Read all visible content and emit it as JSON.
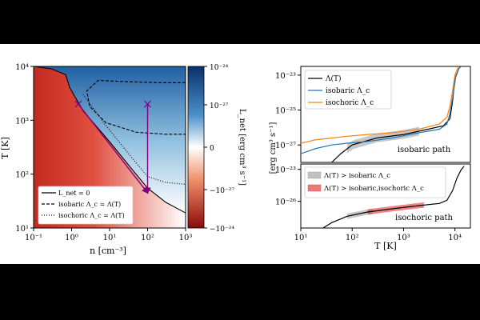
{
  "chart_data": [
    {
      "type": "heatmap",
      "xlabel": "n [cm⁻³]",
      "ylabel": "T [K]",
      "x_scale": "log",
      "y_scale": "log",
      "xlim": [
        0.1,
        1000
      ],
      "ylim": [
        10,
        10000
      ],
      "x_ticks": [
        "10⁻¹",
        "10⁰",
        "10¹",
        "10²",
        "10³"
      ],
      "y_ticks": [
        "10¹",
        "10²",
        "10³",
        "10⁴"
      ],
      "colorbar": {
        "label": "L_net [erg cm³ s⁻¹]",
        "ticks": [
          "10⁻²⁴",
          "10⁻²⁷",
          "0",
          "−10⁻²⁷",
          "−10⁻²⁴"
        ],
        "colors": {
          "positive": "#2166ac",
          "zero": "#ffffff",
          "negative": "#b2182b"
        }
      },
      "lines": [
        {
          "name": "L_net = 0",
          "style": "solid",
          "x": [
            0.1,
            0.3,
            0.7,
            0.9,
            2,
            10,
            40,
            100,
            300,
            1000
          ],
          "y": [
            10000,
            9000,
            7000,
            4000,
            1500,
            400,
            120,
            55,
            30,
            19
          ]
        },
        {
          "name": "isobaric Λ_c = Λ(T)",
          "style": "dashed",
          "x": [
            1000,
            200,
            30,
            5,
            2.5,
            3,
            8,
            50,
            300,
            1000
          ],
          "y": [
            5000,
            5000,
            5200,
            5500,
            3500,
            1800,
            900,
            600,
            550,
            550
          ]
        },
        {
          "name": "isochoric Λ_c = Λ(T)",
          "style": "dotted",
          "x": [
            2,
            8,
            30,
            100,
            300,
            1000
          ],
          "y": [
            3000,
            800,
            250,
            90,
            70,
            65
          ]
        }
      ],
      "legend": {
        "placement": "lower-left",
        "entries": [
          "L_net = 0",
          "isobaric Λ_c = Λ(T)",
          "isochoric Λ_c = Λ(T)"
        ]
      },
      "paths": [
        {
          "name": "isobaric path",
          "x": [
            1.5,
            100
          ],
          "y": [
            2000,
            45
          ],
          "color": "#800080"
        },
        {
          "name": "isochoric path",
          "x": [
            100,
            100
          ],
          "y": [
            2000,
            45
          ],
          "color": "#800080"
        }
      ]
    },
    {
      "type": "line",
      "xlabel": "T [K]",
      "ylabel": "[erg cm³ s⁻¹]",
      "x_scale": "log",
      "y_scale": "log",
      "xlim": [
        10,
        20000
      ],
      "x_ticks": [
        "10¹",
        "10²",
        "10³",
        "10⁴"
      ],
      "panels": [
        {
          "name": "isobaric path",
          "y_ticks": [
            "10⁻²³",
            "10⁻²⁵",
            "10⁻²⁷"
          ],
          "ylim_exp": [
            -28,
            -22.5
          ],
          "series": [
            {
              "name": "Λ(T)",
              "color": "#000000",
              "x": [
                20,
                40,
                60,
                100,
                300,
                1000,
                3000,
                6000,
                8000,
                9000,
                10000,
                12000,
                14000
              ],
              "y_exp": [
                -28.6,
                -28.0,
                -27.5,
                -27.0,
                -26.6,
                -26.4,
                -26.1,
                -25.9,
                -25.5,
                -24.5,
                -23.2,
                -22.6,
                -22.4
              ]
            },
            {
              "name": "isobaric Λ_c",
              "color": "#1f77b4",
              "x": [
                10,
                20,
                40,
                80,
                200,
                600,
                2000,
                5000,
                7000,
                8000,
                9000,
                10500,
                13000
              ],
              "y_exp": [
                -27.5,
                -27.2,
                -27.0,
                -26.9,
                -26.8,
                -26.6,
                -26.3,
                -26.1,
                -25.8,
                -25.2,
                -24.3,
                -23.0,
                -22.4
              ]
            },
            {
              "name": "isochoric Λ_c",
              "color": "#ff7f0e",
              "x": [
                10,
                20,
                40,
                80,
                200,
                600,
                2000,
                5000,
                7000,
                8000,
                9000,
                10000,
                12000
              ],
              "y_exp": [
                -26.9,
                -26.7,
                -26.6,
                -26.5,
                -26.4,
                -26.3,
                -26.1,
                -25.8,
                -25.4,
                -24.8,
                -23.9,
                -23.0,
                -22.4
              ]
            }
          ],
          "bands": [
            {
              "name": "Λ(T) > isobaric Λ_c",
              "x": [
                80,
                2000
              ],
              "color": "#999999"
            }
          ]
        },
        {
          "name": "isochoric path",
          "y_ticks": [
            "10⁻²³",
            "10⁻²⁶"
          ],
          "ylim_exp": [
            -28.5,
            -22.5
          ],
          "series": [
            {
              "name": "Λ(T)",
              "color": "#000000",
              "x": [
                20,
                40,
                80,
                200,
                600,
                2000,
                5000,
                7000,
                9000,
                11000,
                13000,
                15000
              ],
              "y_exp": [
                -28.9,
                -28.0,
                -27.4,
                -27.0,
                -26.7,
                -26.4,
                -26.2,
                -25.9,
                -25.0,
                -23.8,
                -23.1,
                -22.7
              ]
            }
          ],
          "bands": [
            {
              "name": "Λ(T) > isobaric Λ_c",
              "x": [
                80,
                250
              ],
              "color": "#999999"
            },
            {
              "name": "Λ(T) > isobaric,isochoric Λ_c",
              "x": [
                200,
                2500
              ],
              "color": "#e02020"
            }
          ]
        }
      ],
      "legend_top": {
        "placement": "top-left",
        "entries": [
          "Λ(T)",
          "isobaric Λ_c",
          "isochoric Λ_c"
        ]
      },
      "legend_bottom": {
        "placement": "top-left",
        "entries": [
          "Λ(T) > isobaric Λ_c",
          "Λ(T) > isobaric,isochoric Λ_c"
        ]
      }
    }
  ]
}
